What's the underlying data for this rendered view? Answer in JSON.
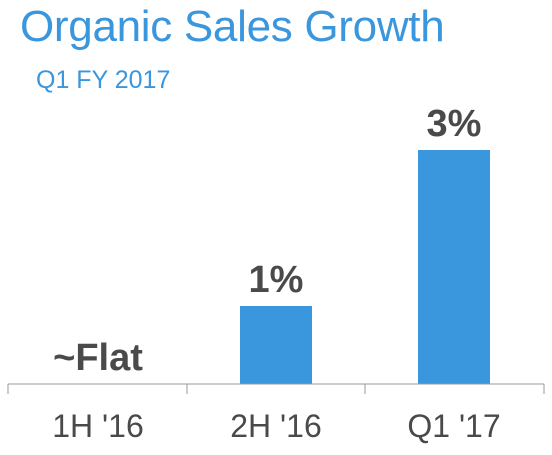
{
  "chart_data": {
    "type": "bar",
    "title": "Organic Sales Growth",
    "subtitle": "Q1 FY 2017",
    "xlabel": "",
    "ylabel": "",
    "categories": [
      "1H '16",
      "2H '16",
      "Q1 '17"
    ],
    "values": [
      0,
      1,
      3
    ],
    "value_labels": [
      "~Flat",
      "1%",
      "3%"
    ],
    "unit": "%",
    "ylim": [
      0,
      3
    ],
    "grid": false,
    "legend": "none",
    "colors": {
      "bar": "#3a96dd",
      "title": "#3a96dd",
      "text": "#4a4a4a",
      "axis": "#999999"
    }
  }
}
